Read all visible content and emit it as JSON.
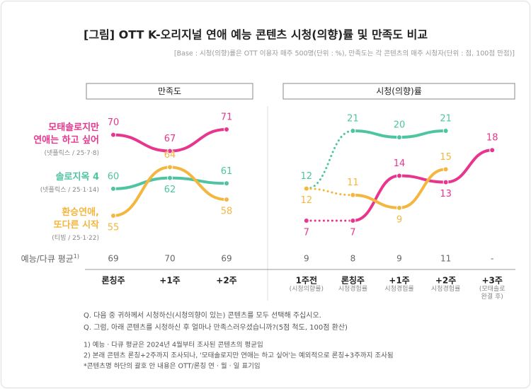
{
  "title": "[그림] OTT K-오리지널 연애 예능 콘텐츠 시청(의향)률 및 만족도 비교",
  "subtitle": "[Base : 시청(의향)률은 OTT 이용자 매주 500명(단위 : %), 만족도는 각 콘텐츠의 매주 시청자(단위 : 점, 100점 만점)]",
  "chart_data": [
    {
      "type": "line",
      "panel_title": "만족도",
      "categories": [
        "론칭주",
        "+1주",
        "+2주"
      ],
      "series": [
        {
          "name": "모태솔로지만\n연애는 하고 싶어",
          "meta": "(넷플릭스 / 25·7·8)",
          "color": "#e8368f",
          "values": [
            70,
            67,
            71
          ]
        },
        {
          "name": "솔로지옥 4",
          "meta": "(넷플릭스 / 25·1·14)",
          "color": "#4ec4a0",
          "values": [
            60,
            62,
            61
          ]
        },
        {
          "name": "환승연애,\n또다른 시작",
          "meta": "(티빙 / 25·1·22)",
          "color": "#f3b63e",
          "values": [
            55,
            64,
            58
          ]
        }
      ],
      "average": {
        "label": "예능/다큐 평균",
        "note_ref": "1)",
        "values": [
          69,
          70,
          69
        ]
      }
    },
    {
      "type": "line",
      "panel_title": "시청(의향)률",
      "categories": [
        "1주전",
        "론칭주",
        "+1주",
        "+2주",
        "+3주"
      ],
      "category_notes": [
        "(시청의향률)",
        "시청경험률",
        "시청경험률",
        "시청경험률",
        "(모태솔로\n완결 후)"
      ],
      "dotted_first_segment": true,
      "series": [
        {
          "color": "#e8368f",
          "values": [
            7,
            7,
            14,
            13,
            18
          ]
        },
        {
          "color": "#4ec4a0",
          "values": [
            12,
            21,
            20,
            21,
            null
          ]
        },
        {
          "color": "#f3b63e",
          "values": [
            12,
            11,
            9,
            15,
            null
          ]
        }
      ],
      "average": {
        "values": [
          9,
          8,
          9,
          11,
          "-"
        ]
      }
    }
  ],
  "footnotes": {
    "questions": [
      "Q. 다음 중 귀하께서 시청하신(시청의향이 있는) 콘텐츠를 모두 선택해 주십시오.",
      "Q. 그럼, 아래 콘텐츠를 시청하신 후 얼마나 만족스러우셨습니까?(5점 척도, 100점 환산)"
    ],
    "notes": [
      "1) 예능 · 다큐 평균은 2024년 4월부터 조사된 콘텐츠의 평균임",
      "2) 본래 콘텐츠 론칭+2주까지 조사되나, '모태솔로지만 연애는 하고 싶어'는 예외적으로 론칭+3주까지 조사됨",
      "*콘텐츠명 하단의 괄호 안 내용은 OTT/론칭 연 · 월 · 일 표기임"
    ]
  }
}
